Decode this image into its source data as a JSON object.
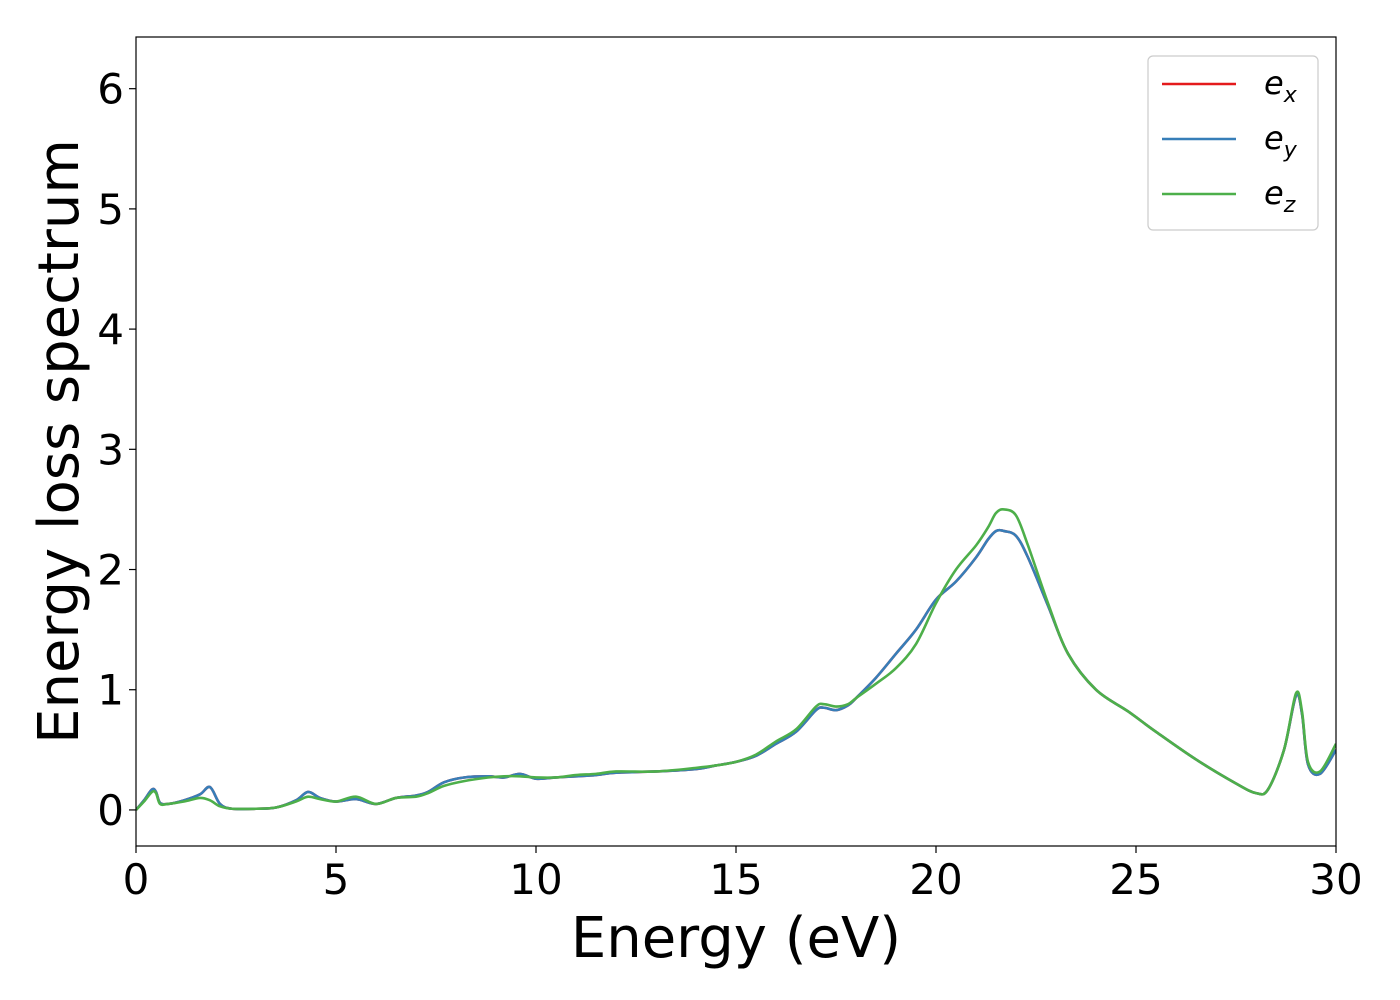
{
  "chart_data": {
    "type": "line",
    "title": "",
    "xlabel": "Energy (eV)",
    "ylabel": "Energy loss spectrum",
    "xlim": [
      0,
      30
    ],
    "ylim": [
      -0.3,
      6.43
    ],
    "xticks": [
      0,
      5,
      10,
      15,
      20,
      25,
      30
    ],
    "xtick_labels": [
      "0",
      "5",
      "10",
      "15",
      "20",
      "25",
      "30"
    ],
    "yticks": [
      0,
      1,
      2,
      3,
      4,
      5,
      6
    ],
    "ytick_labels": [
      "0",
      "1",
      "2",
      "3",
      "4",
      "5",
      "6"
    ],
    "grid": false,
    "legend": "top-right",
    "series": [
      {
        "name": "e_x",
        "legend_base": "e",
        "legend_sub": "x",
        "color": "#e41a1c",
        "x": [
          0,
          0.2,
          0.4,
          0.5,
          0.6,
          0.8,
          1.2,
          1.6,
          1.85,
          2.1,
          2.4,
          3.0,
          3.5,
          4.0,
          4.3,
          4.6,
          5.0,
          5.5,
          6.0,
          6.5,
          7.0,
          7.3,
          7.7,
          8.2,
          8.8,
          9.2,
          9.6,
          10.0,
          10.5,
          11.0,
          11.5,
          12.0,
          13.0,
          14.0,
          14.5,
          15.0,
          15.5,
          16.0,
          16.5,
          17.0,
          17.2,
          17.5,
          17.8,
          18.0,
          18.5,
          19.0,
          19.5,
          20.0,
          20.5,
          21.0,
          21.3,
          21.5,
          21.7,
          22.0,
          22.3,
          22.8,
          23.3,
          24.0,
          24.8,
          25.5,
          26.5,
          27.5,
          28.0,
          28.3,
          28.7,
          29.0,
          29.15,
          29.3,
          29.6,
          30.0
        ],
        "y": [
          0.0,
          0.08,
          0.17,
          0.15,
          0.06,
          0.05,
          0.08,
          0.13,
          0.19,
          0.05,
          0.01,
          0.01,
          0.02,
          0.08,
          0.15,
          0.1,
          0.07,
          0.09,
          0.05,
          0.1,
          0.12,
          0.15,
          0.23,
          0.27,
          0.28,
          0.27,
          0.3,
          0.26,
          0.27,
          0.28,
          0.29,
          0.31,
          0.32,
          0.34,
          0.37,
          0.4,
          0.45,
          0.55,
          0.65,
          0.83,
          0.85,
          0.83,
          0.87,
          0.93,
          1.1,
          1.3,
          1.5,
          1.75,
          1.9,
          2.1,
          2.25,
          2.32,
          2.32,
          2.28,
          2.1,
          1.7,
          1.3,
          1.0,
          0.82,
          0.65,
          0.42,
          0.22,
          0.14,
          0.17,
          0.5,
          0.95,
          0.8,
          0.38,
          0.3,
          0.5
        ]
      },
      {
        "name": "e_y",
        "legend_base": "e",
        "legend_sub": "y",
        "color": "#377eb8",
        "x": [
          0,
          0.2,
          0.4,
          0.5,
          0.6,
          0.8,
          1.2,
          1.6,
          1.85,
          2.1,
          2.4,
          3.0,
          3.5,
          4.0,
          4.3,
          4.6,
          5.0,
          5.5,
          6.0,
          6.5,
          7.0,
          7.3,
          7.7,
          8.2,
          8.8,
          9.2,
          9.6,
          10.0,
          10.5,
          11.0,
          11.5,
          12.0,
          13.0,
          14.0,
          14.5,
          15.0,
          15.5,
          16.0,
          16.5,
          17.0,
          17.2,
          17.5,
          17.8,
          18.0,
          18.5,
          19.0,
          19.5,
          20.0,
          20.5,
          21.0,
          21.3,
          21.5,
          21.7,
          22.0,
          22.3,
          22.8,
          23.3,
          24.0,
          24.8,
          25.5,
          26.5,
          27.5,
          28.0,
          28.3,
          28.7,
          29.0,
          29.15,
          29.3,
          29.6,
          30.0
        ],
        "y": [
          0.0,
          0.08,
          0.17,
          0.15,
          0.06,
          0.05,
          0.08,
          0.13,
          0.19,
          0.05,
          0.01,
          0.01,
          0.02,
          0.08,
          0.15,
          0.1,
          0.07,
          0.09,
          0.05,
          0.1,
          0.12,
          0.15,
          0.23,
          0.27,
          0.28,
          0.27,
          0.3,
          0.26,
          0.27,
          0.28,
          0.29,
          0.31,
          0.32,
          0.34,
          0.37,
          0.4,
          0.45,
          0.55,
          0.65,
          0.83,
          0.85,
          0.83,
          0.87,
          0.93,
          1.1,
          1.3,
          1.5,
          1.75,
          1.9,
          2.1,
          2.25,
          2.32,
          2.32,
          2.28,
          2.1,
          1.7,
          1.3,
          1.0,
          0.82,
          0.65,
          0.42,
          0.22,
          0.14,
          0.17,
          0.5,
          0.95,
          0.8,
          0.38,
          0.3,
          0.5
        ]
      },
      {
        "name": "e_z",
        "legend_base": "e",
        "legend_sub": "z",
        "color": "#4daf4a",
        "x": [
          0,
          0.2,
          0.4,
          0.5,
          0.6,
          0.8,
          1.2,
          1.6,
          1.85,
          2.1,
          2.4,
          3.0,
          3.5,
          4.0,
          4.3,
          4.6,
          5.0,
          5.5,
          6.0,
          6.5,
          7.0,
          7.3,
          7.7,
          8.2,
          8.8,
          9.2,
          9.6,
          10.0,
          10.5,
          11.0,
          11.5,
          12.0,
          13.0,
          14.0,
          14.5,
          15.0,
          15.5,
          16.0,
          16.5,
          17.0,
          17.2,
          17.5,
          17.8,
          18.0,
          18.5,
          19.0,
          19.5,
          20.0,
          20.5,
          21.0,
          21.3,
          21.5,
          21.7,
          22.0,
          22.3,
          22.8,
          23.3,
          24.0,
          24.8,
          25.5,
          26.5,
          27.5,
          28.0,
          28.3,
          28.7,
          29.0,
          29.15,
          29.3,
          29.6,
          30.0
        ],
        "y": [
          0.0,
          0.07,
          0.15,
          0.14,
          0.05,
          0.05,
          0.07,
          0.1,
          0.08,
          0.03,
          0.01,
          0.01,
          0.02,
          0.07,
          0.11,
          0.09,
          0.07,
          0.11,
          0.05,
          0.1,
          0.11,
          0.14,
          0.2,
          0.24,
          0.27,
          0.28,
          0.28,
          0.27,
          0.27,
          0.29,
          0.3,
          0.32,
          0.32,
          0.35,
          0.37,
          0.4,
          0.46,
          0.57,
          0.67,
          0.86,
          0.88,
          0.86,
          0.88,
          0.93,
          1.05,
          1.18,
          1.38,
          1.72,
          2.0,
          2.2,
          2.35,
          2.47,
          2.5,
          2.45,
          2.2,
          1.72,
          1.3,
          1.0,
          0.82,
          0.65,
          0.42,
          0.22,
          0.14,
          0.17,
          0.5,
          0.97,
          0.82,
          0.4,
          0.32,
          0.55
        ]
      }
    ]
  }
}
